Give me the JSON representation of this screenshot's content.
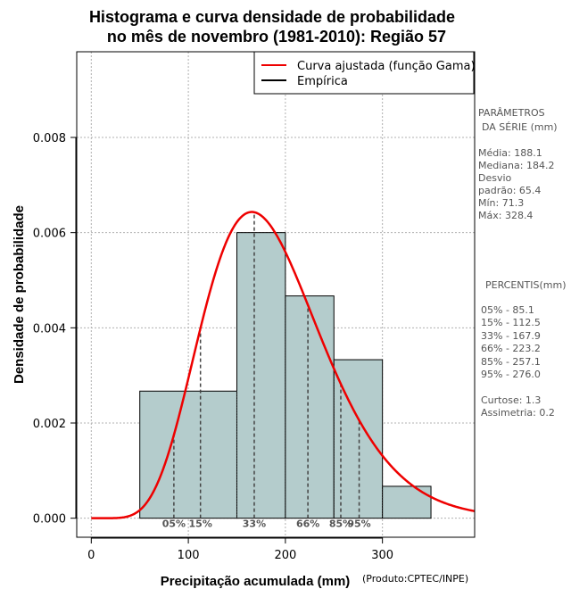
{
  "chart_data": {
    "type": "bar",
    "title_line1": "Histograma e curva densidade de probabilidade",
    "title_line2": "no mês de novembro (1981-2010): Região 57",
    "xlabel": "Precipitação acumulada (mm)",
    "ylabel": "Densidade de probabilidade",
    "credit": "(Produto:CPTEC/INPE)",
    "xlim": [
      -15,
      395
    ],
    "ylim": [
      -0.0004,
      0.0098
    ],
    "xticks": [
      0,
      100,
      200,
      300
    ],
    "yticks": [
      0.0,
      0.002,
      0.004,
      0.006,
      0.008
    ],
    "ytick_labels": [
      "0.000",
      "0.002",
      "0.004",
      "0.006",
      "0.008"
    ],
    "grid": true,
    "bins": [
      {
        "from": 50,
        "to": 150,
        "density": 0.00267
      },
      {
        "from": 150,
        "to": 200,
        "density": 0.006
      },
      {
        "from": 200,
        "to": 250,
        "density": 0.00467
      },
      {
        "from": 250,
        "to": 300,
        "density": 0.00333
      },
      {
        "from": 300,
        "to": 350,
        "density": 0.00067
      }
    ],
    "bar_color": "#b4cccc",
    "curve": {
      "name": "Curva ajustada (função Gama)",
      "shape": 8.28,
      "scale": 22.72,
      "color": "#ee0000"
    },
    "empirical": {
      "name": "Empírica",
      "color": "#000000"
    },
    "legend_position": "top-right",
    "percentiles": [
      {
        "label": "05%",
        "value": 85.1
      },
      {
        "label": "15%",
        "value": 112.5
      },
      {
        "label": "33%",
        "value": 167.9
      },
      {
        "label": "66%",
        "value": 223.2
      },
      {
        "label": "85%",
        "value": 257.1
      },
      {
        "label": "95%",
        "value": 276.0
      }
    ]
  },
  "side_panel": {
    "params_title1": "PARÂMETROS",
    "params_title2": "DA SÉRIE (mm)",
    "media": "Média:  188.1",
    "mediana": "Mediana:  184.2",
    "desvio1": "Desvio",
    "desvio2": "padrão:  65.4",
    "min": "Mín:  71.3",
    "max": "Máx:  328.4",
    "percentis_title": "PERCENTIS(mm)",
    "p05": "05% -   85.1",
    "p15": "15% -   112.5",
    "p33": "33% -   167.9",
    "p66": "66% -   223.2",
    "p85": "85% -   257.1",
    "p95": "95% -   276.0",
    "curtose": "Curtose:  1.3",
    "assimetria": "Assimetria:  0.2"
  }
}
